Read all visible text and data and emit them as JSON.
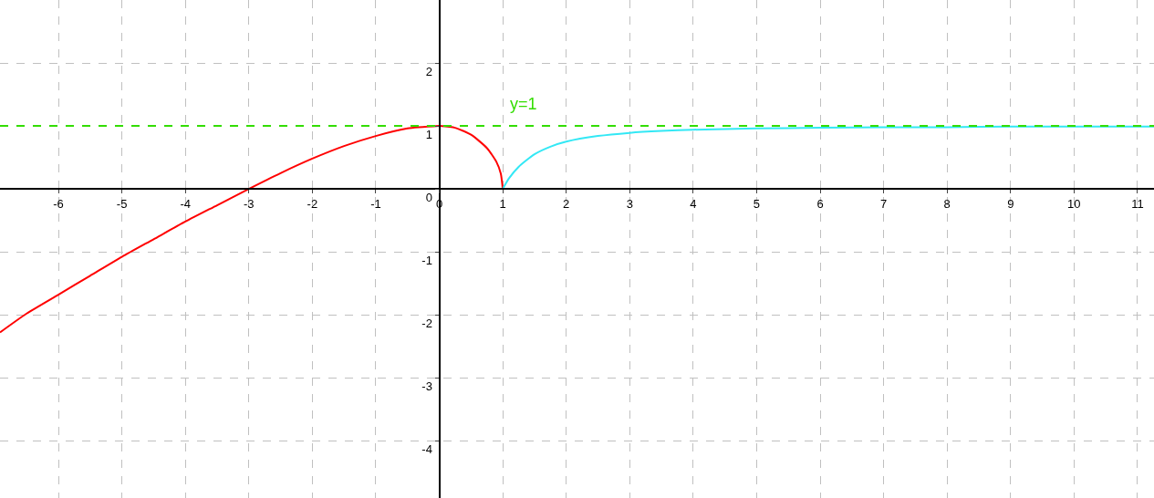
{
  "chart_data": {
    "type": "line",
    "series": [
      {
        "color": "#ff0000",
        "x": [
          -6.92,
          -6.5,
          -6,
          -5.5,
          -5,
          -4.5,
          -4,
          -3.5,
          -3,
          -2.5,
          -2,
          -1.5,
          -1,
          -0.5,
          0
        ],
        "values": [
          -2.28,
          -1.98,
          -1.68,
          -1.38,
          -1.08,
          -0.8,
          -0.52,
          -0.26,
          0,
          0.25,
          0.48,
          0.68,
          0.84,
          0.96,
          1
        ]
      },
      {
        "color": "#ff0000",
        "x": [
          0,
          0.25,
          0.5,
          0.75,
          0.9,
          0.97,
          1
        ],
        "values": [
          1,
          0.97,
          0.86,
          0.65,
          0.43,
          0.24,
          0
        ]
      },
      {
        "color": "#33e8f5",
        "x": [
          1,
          1.1,
          1.25,
          1.5,
          1.75,
          2,
          2.5,
          3,
          3.5,
          4,
          5,
          6,
          7,
          8,
          9,
          10,
          11.26
        ],
        "values": [
          0,
          0.17,
          0.35,
          0.55,
          0.67,
          0.75,
          0.84,
          0.89,
          0.92,
          0.94,
          0.96,
          0.97,
          0.98,
          0.98,
          0.99,
          0.99,
          0.99
        ]
      }
    ],
    "ref_lines": [
      {
        "axis": "y",
        "value": 1,
        "color": "#33dd00",
        "line_style": "dashed",
        "label": "y=1"
      }
    ],
    "xlim": [
      -6.92,
      11.26
    ],
    "ylim": [
      -4.91,
      3.0
    ],
    "xticks": [
      -6,
      -5,
      -4,
      -3,
      -2,
      -1,
      0,
      1,
      2,
      3,
      4,
      5,
      6,
      7,
      8,
      9,
      10,
      11
    ],
    "yticks": [
      -4,
      -3,
      -2,
      -1,
      0,
      1,
      2
    ],
    "grid": true,
    "marker": "none",
    "line_style": "solid"
  }
}
